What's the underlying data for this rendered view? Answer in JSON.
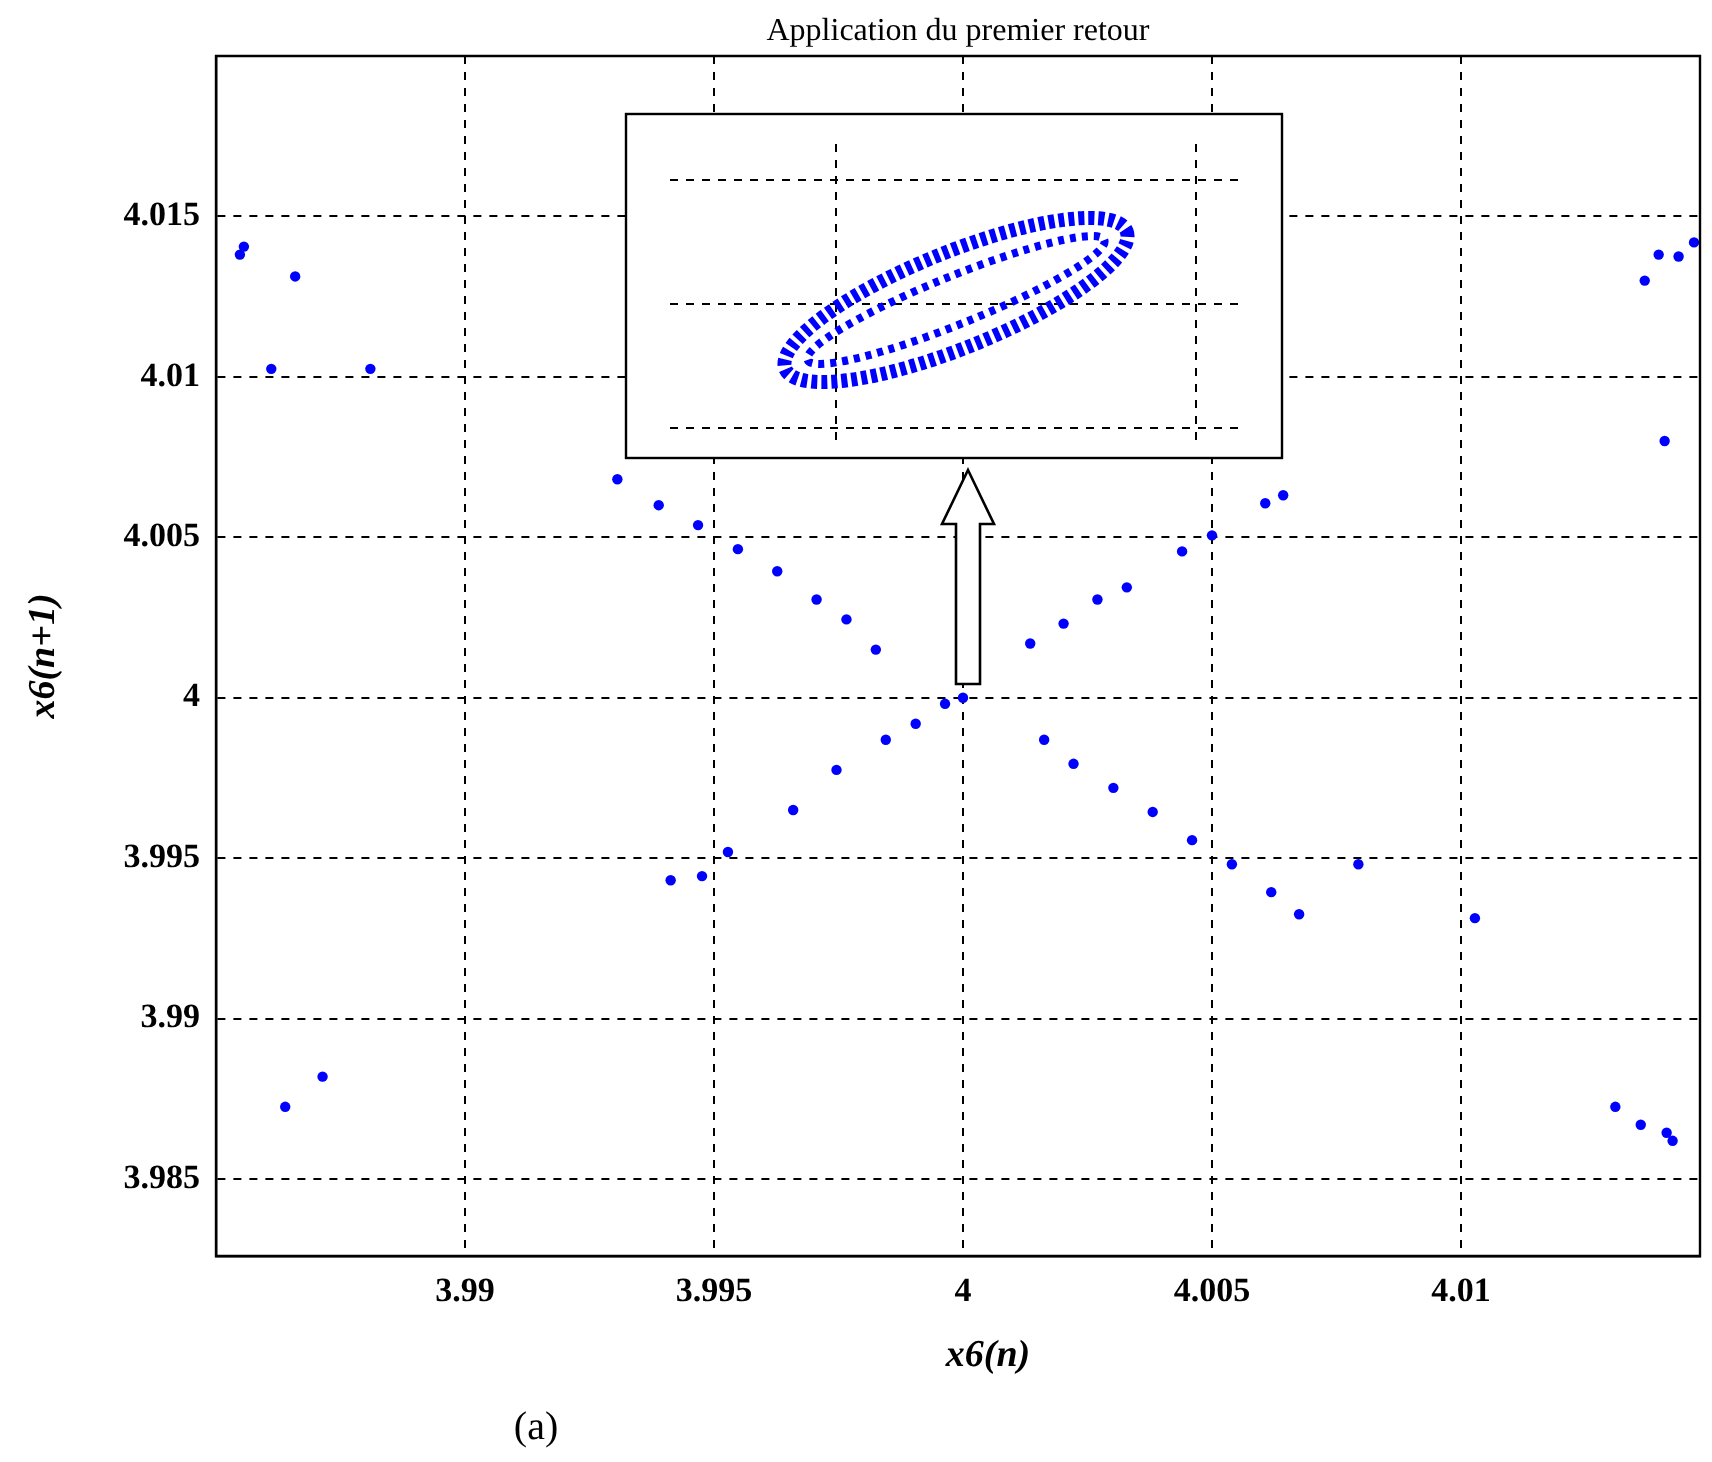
{
  "chart_data": {
    "type": "scatter",
    "title": "Application du premier retour",
    "xlabel": "x6(n)",
    "ylabel": "x6(n+1)",
    "annotations": [
      "(a)"
    ],
    "xlim": [
      3.985,
      4.0148
    ],
    "ylim": [
      3.9826,
      4.02
    ],
    "xticks": [
      3.99,
      3.995,
      4,
      4.005,
      4.01
    ],
    "yticks": [
      3.985,
      3.99,
      3.995,
      4,
      4.005,
      4.01,
      4.015
    ],
    "grid": true,
    "marker": "circle",
    "series": [
      {
        "color": "#0000ff",
        "x": [
          3.98548,
          3.98556,
          3.98611,
          3.98659,
          3.9881,
          3.98639,
          3.98714,
          4.01369,
          4.01397,
          4.01437,
          4.01468,
          4.01409,
          4.0131,
          4.01361,
          4.01413,
          4.01425,
          4.00794,
          4.01028,
          3.99306,
          3.99389,
          3.99468,
          3.99548,
          3.99627,
          3.99706,
          3.99766,
          3.99825,
          4.00163,
          4.00222,
          4.00302,
          4.00381,
          4.0046,
          4.0054,
          4.00619,
          4.00675,
          3.99413,
          3.99476,
          3.99528,
          3.99659,
          3.99746,
          3.99845,
          3.99905,
          3.99964,
          4.0,
          4.00135,
          4.00202,
          4.0027,
          4.00329,
          4.0044,
          4.005,
          4.00607,
          4.00643
        ],
        "values": [
          4.01381,
          4.01406,
          4.01025,
          4.01313,
          4.01025,
          3.98725,
          3.98819,
          4.013,
          4.01381,
          4.01375,
          4.01419,
          4.008,
          3.98725,
          3.98669,
          3.98644,
          3.98619,
          3.99481,
          3.99313,
          4.00681,
          4.006,
          4.00538,
          4.00463,
          4.00394,
          4.00306,
          4.00244,
          4.0015,
          3.99869,
          3.99794,
          3.99719,
          3.99644,
          3.99556,
          3.99481,
          3.99394,
          3.99325,
          3.99431,
          3.99444,
          3.99519,
          3.9965,
          3.99775,
          3.99869,
          3.99919,
          3.99981,
          4.0,
          4.00169,
          4.00231,
          4.00306,
          4.00344,
          4.00456,
          4.00506,
          4.00606,
          4.00631
        ]
      }
    ]
  }
}
